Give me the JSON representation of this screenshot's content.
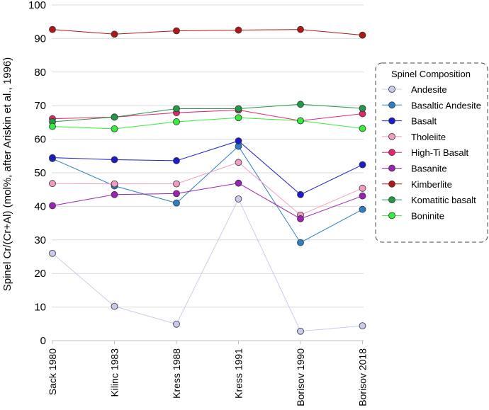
{
  "chart_data": {
    "type": "line",
    "title": "",
    "xlabel": "",
    "ylabel": "Spinel Cr/(Cr+Al)  (mol%, after Ariskin et al., 1996)",
    "ylim": [
      0,
      100
    ],
    "yticks": [
      0,
      10,
      20,
      30,
      40,
      50,
      60,
      70,
      80,
      90,
      100
    ],
    "grid": true,
    "legend_position": "right",
    "legend_title": "Spinel Composition",
    "categories": [
      "Sack 1980",
      "Kilinc 1983",
      "Kress 1988",
      "Kress 1991",
      "Borisov 1990",
      "Borisov 2018"
    ],
    "series": [
      {
        "name": "Andesite",
        "color": "#c8cbee",
        "values": [
          26,
          10.2,
          4.9,
          42.2,
          2.8,
          4.4
        ]
      },
      {
        "name": "Basaltic Andesite",
        "color": "#2a7fc6",
        "values": [
          54.2,
          46.1,
          41,
          57.9,
          29.2,
          39.1
        ]
      },
      {
        "name": "Basalt",
        "color": "#1c1ccf",
        "values": [
          54.5,
          53.9,
          53.6,
          59.5,
          43.5,
          52.4
        ]
      },
      {
        "name": "Tholeiite",
        "color": "#f39ac4",
        "values": [
          46.8,
          46.7,
          46.7,
          53.1,
          37.4,
          45.4
        ]
      },
      {
        "name": "High-Ti Basalt",
        "color": "#e8246e",
        "values": [
          66.1,
          66.6,
          67.9,
          68.7,
          65.5,
          67.6
        ]
      },
      {
        "name": "Basanite",
        "color": "#9b22b5",
        "values": [
          40.2,
          43.5,
          43.8,
          46.9,
          36.3,
          43.1
        ]
      },
      {
        "name": "Kimberlite",
        "color": "#b01818",
        "values": [
          92.7,
          91.3,
          92.3,
          92.5,
          92.7,
          91
        ]
      },
      {
        "name": "Komatitic basalt",
        "color": "#1f9a45",
        "values": [
          65.2,
          66.6,
          69.1,
          69.1,
          70.4,
          69.2
        ]
      },
      {
        "name": "Boninite",
        "color": "#33ee3a",
        "values": [
          63.8,
          63.1,
          65.2,
          66.4,
          65.5,
          63.2
        ]
      }
    ]
  }
}
